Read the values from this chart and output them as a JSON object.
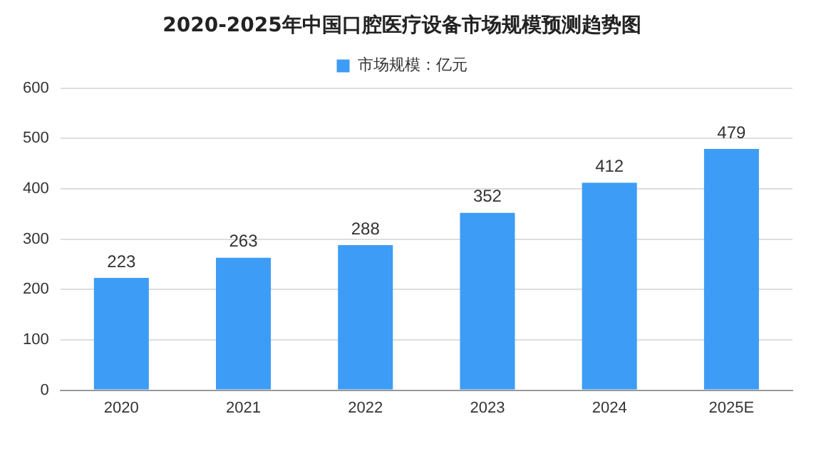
{
  "chart_data": {
    "type": "bar",
    "title": "2020-2025年中国口腔医疗设备市场规模预测趋势图",
    "categories": [
      "2020",
      "2021",
      "2022",
      "2023",
      "2024",
      "2025E"
    ],
    "series": [
      {
        "name": "市场规模：亿元",
        "color": "#3d9cf5",
        "values": [
          223,
          263,
          288,
          352,
          412,
          479
        ]
      }
    ],
    "ylim": [
      0,
      600
    ],
    "yticks": [
      0,
      100,
      200,
      300,
      400,
      500,
      600
    ],
    "grid": "y",
    "legend": "top",
    "data_labels": true
  }
}
